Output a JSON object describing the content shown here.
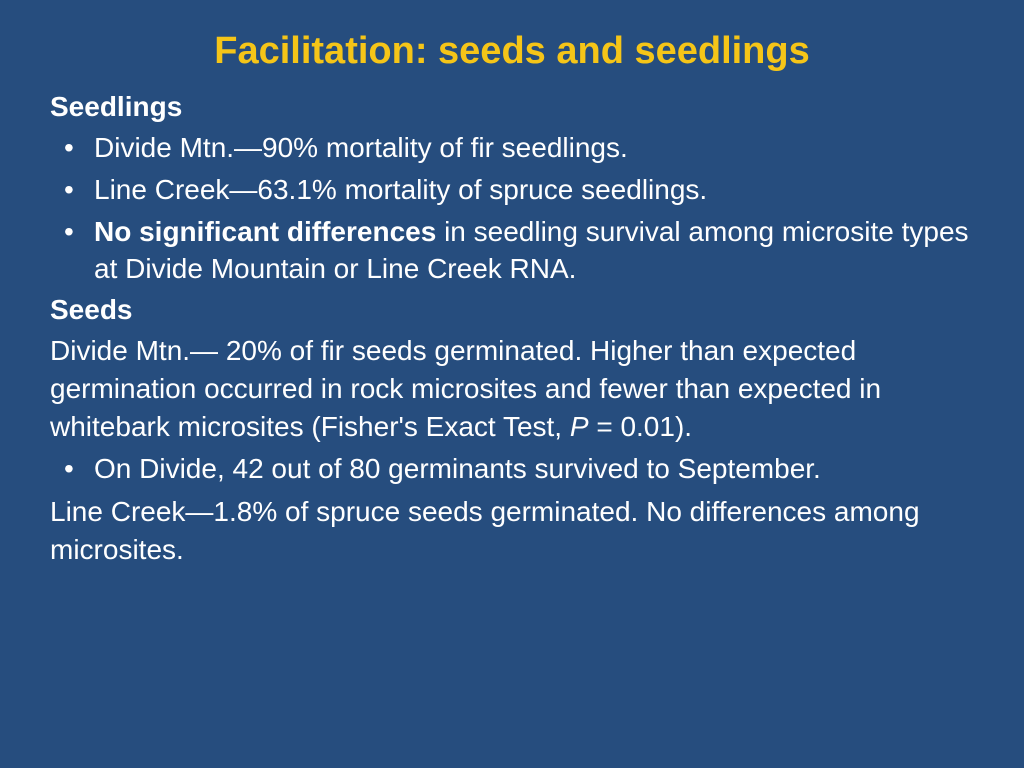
{
  "style": {
    "background_color": "#264d7e",
    "title_color": "#f5c518",
    "text_color": "#ffffff",
    "title_fontsize": 38,
    "body_fontsize": 28,
    "font_family": "Arial"
  },
  "title": "Facilitation: seeds and seedlings",
  "section1": {
    "heading": "Seedlings",
    "bullet1": "Divide Mtn.—90% mortality of fir seedlings.",
    "bullet2": "Line Creek—63.1% mortality of spruce seedlings.",
    "bullet3_bold": "No significant differences",
    "bullet3_rest": " in seedling survival among microsite types at Divide Mountain or Line Creek RNA."
  },
  "section2": {
    "heading": "Seeds",
    "para1_a": "Divide Mtn.— 20% of fir seeds germinated. Higher than expected germination occurred in rock microsites and fewer than expected in whitebark microsites (Fisher's Exact Test, ",
    "para1_p": "P",
    "para1_b": " = 0.01).",
    "bullet1": "On Divide, 42 out of 80 germinants survived to September.",
    "para2": "Line Creek—1.8% of spruce seeds germinated. No differences among microsites."
  }
}
